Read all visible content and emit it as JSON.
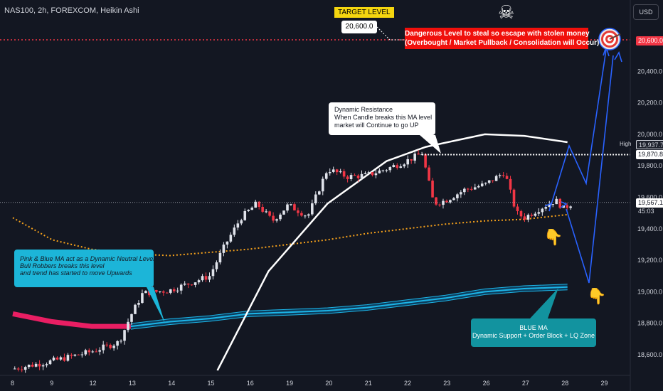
{
  "header": {
    "symbol_title": "NAS100, 2h, FOREXCOM, Heikin Ashi",
    "currency_button": "USD"
  },
  "annotations": {
    "target_level_label": "TARGET LEVEL",
    "target_level_value": "20,600.0",
    "danger_line1": "Dangerous Level to steal so escape with stolen money",
    "danger_line2": "(Overbought / Market Pullback / Consolidation will Occur)",
    "resistance_line1": "Dynamic Resistance",
    "resistance_line2": "When Candle breaks this MA level",
    "resistance_line3": "market will Continue to go UP",
    "pink_blue_line1": "Pink & Blue MA act as a Dynamic Neutral Level",
    "pink_blue_line2": "Bull Robbers breaks this level",
    "pink_blue_line3": "and trend has started to move Upwards",
    "blue_ma_line1": "BLUE MA",
    "blue_ma_line2": "Dynamic Support + Order Block + LQ Zone",
    "high_label": "High"
  },
  "price_tags": {
    "target": "20,600.0",
    "high": "19,937.7",
    "resistance": "19,870.8",
    "current": "19,567.1",
    "countdown": "45:03"
  },
  "colors": {
    "background": "#131722",
    "bull_candle": "#e0e3eb",
    "bear_candle": "#f23645",
    "target_line": "#f23645",
    "blue_ma": "#1cb5e8",
    "pink_ma": "#e91e63",
    "white_ma": "#ffffff",
    "dotted_ma": "#f7a21b",
    "projection": "#2962ff",
    "danger_box": "#f0100c",
    "target_badge": "#f5d60f"
  },
  "icons": {
    "skull": "skull-crossbones-icon",
    "target": "bullseye-target-icon",
    "hand": "pointing-hand-down-icon"
  },
  "chart_data": {
    "type": "candlestick",
    "title": "NAS100, 2h, FOREXCOM, Heikin Ashi",
    "x_tick_labels": [
      "8",
      "9",
      "12",
      "13",
      "14",
      "15",
      "16",
      "19",
      "20",
      "21",
      "22",
      "23",
      "26",
      "27",
      "28",
      "29"
    ],
    "y_tick_labels": [
      "18,600.0",
      "18,800.0",
      "19,000.0",
      "19,200.0",
      "19,400.0",
      "19,600.0",
      "19,800.0",
      "20,000.0",
      "20,200.0",
      "20,400.0",
      "20,600.0"
    ],
    "y_ticks": [
      18600,
      18800,
      19000,
      19200,
      19400,
      19600,
      19800,
      20000,
      20200,
      20400,
      20600
    ],
    "ylim": [
      18480,
      20800
    ],
    "xlim": [
      0,
      15.8
    ],
    "grid": false,
    "candle_close_anchors": [
      {
        "x": 0,
        "y": 18510
      },
      {
        "x": 1,
        "y": 18560
      },
      {
        "x": 2,
        "y": 18620
      },
      {
        "x": 2.7,
        "y": 18680
      },
      {
        "x": 3,
        "y": 18850
      },
      {
        "x": 3.3,
        "y": 18990
      },
      {
        "x": 4,
        "y": 19010
      },
      {
        "x": 5,
        "y": 19100
      },
      {
        "x": 5.4,
        "y": 19300
      },
      {
        "x": 5.8,
        "y": 19470
      },
      {
        "x": 6.2,
        "y": 19560
      },
      {
        "x": 6.6,
        "y": 19450
      },
      {
        "x": 7,
        "y": 19550
      },
      {
        "x": 7.5,
        "y": 19480
      },
      {
        "x": 8,
        "y": 19780
      },
      {
        "x": 8.5,
        "y": 19730
      },
      {
        "x": 9,
        "y": 19740
      },
      {
        "x": 9.5,
        "y": 19780
      },
      {
        "x": 10,
        "y": 19830
      },
      {
        "x": 10.4,
        "y": 19880
      },
      {
        "x": 10.7,
        "y": 19560
      },
      {
        "x": 11,
        "y": 19580
      },
      {
        "x": 11.5,
        "y": 19650
      },
      {
        "x": 12,
        "y": 19680
      },
      {
        "x": 12.5,
        "y": 19760
      },
      {
        "x": 12.8,
        "y": 19500
      },
      {
        "x": 13,
        "y": 19470
      },
      {
        "x": 13.4,
        "y": 19530
      },
      {
        "x": 13.8,
        "y": 19580
      },
      {
        "x": 14,
        "y": 19530
      },
      {
        "x": 14.2,
        "y": 19560
      }
    ],
    "target_level": 20600,
    "high_level": 19937.7,
    "resistance_level": 19870.8,
    "current_price": 19567.1,
    "series": [
      {
        "type": "line",
        "color": "white",
        "points": [
          [
            5.2,
            18500
          ],
          [
            6.5,
            19130
          ],
          [
            8,
            19560
          ],
          [
            9.5,
            19830
          ],
          [
            10.5,
            19920
          ],
          [
            12,
            20000
          ],
          [
            13,
            19990
          ],
          [
            14.1,
            19950
          ]
        ]
      },
      {
        "type": "line",
        "color": "orange-dotted",
        "points": [
          [
            0,
            19470
          ],
          [
            1,
            19330
          ],
          [
            2,
            19270
          ],
          [
            3,
            19240
          ],
          [
            4,
            19230
          ],
          [
            5,
            19250
          ],
          [
            6,
            19270
          ],
          [
            7,
            19300
          ],
          [
            8,
            19330
          ],
          [
            9,
            19370
          ],
          [
            10,
            19400
          ],
          [
            11,
            19430
          ],
          [
            12,
            19450
          ],
          [
            13,
            19460
          ],
          [
            14.1,
            19490
          ]
        ]
      },
      {
        "type": "line",
        "color": "pink-blue",
        "points": [
          [
            0,
            18860
          ],
          [
            1,
            18810
          ],
          [
            2,
            18780
          ],
          [
            3,
            18780
          ],
          [
            4,
            18810
          ],
          [
            5,
            18830
          ],
          [
            6,
            18860
          ],
          [
            7,
            18870
          ],
          [
            8,
            18880
          ],
          [
            9,
            18900
          ],
          [
            10,
            18930
          ],
          [
            11,
            18960
          ],
          [
            12,
            19000
          ],
          [
            13,
            19020
          ],
          [
            14.1,
            19030
          ]
        ]
      },
      {
        "type": "line",
        "color": "blue-projection",
        "points": [
          [
            13.9,
            19590
          ],
          [
            14.1,
            19950
          ],
          [
            14.5,
            19740
          ],
          [
            15.0,
            20620
          ],
          [
            14.5,
            19080
          ],
          [
            15.3,
            20580
          ]
        ]
      }
    ]
  }
}
